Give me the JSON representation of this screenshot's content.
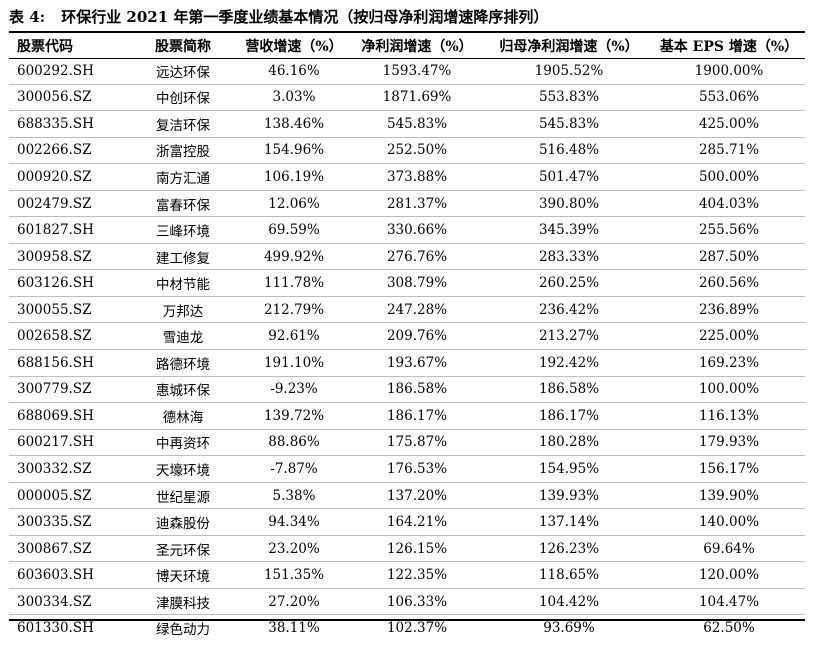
{
  "caption": {
    "label": "表 4:",
    "title": "环保行业 2021 年第一季度业绩基本情况（按归母净利润增速降序排列）"
  },
  "table": {
    "headers": [
      "股票代码",
      "股票简称",
      "营收增速（%）",
      "净利润增速（%）",
      "归母净利润增速（%）",
      "基本 EPS 增速（%）"
    ],
    "rows": [
      [
        "600292.SH",
        "远达环保",
        "46.16%",
        "1593.47%",
        "1905.52%",
        "1900.00%"
      ],
      [
        "300056.SZ",
        "中创环保",
        "3.03%",
        "1871.69%",
        "553.83%",
        "553.06%"
      ],
      [
        "688335.SH",
        "复洁环保",
        "138.46%",
        "545.83%",
        "545.83%",
        "425.00%"
      ],
      [
        "002266.SZ",
        "浙富控股",
        "154.96%",
        "252.50%",
        "516.48%",
        "285.71%"
      ],
      [
        "000920.SZ",
        "南方汇通",
        "106.19%",
        "373.88%",
        "501.47%",
        "500.00%"
      ],
      [
        "002479.SZ",
        "富春环保",
        "12.06%",
        "281.37%",
        "390.80%",
        "404.03%"
      ],
      [
        "601827.SH",
        "三峰环境",
        "69.59%",
        "330.66%",
        "345.39%",
        "255.56%"
      ],
      [
        "300958.SZ",
        "建工修复",
        "499.92%",
        "276.76%",
        "283.33%",
        "287.50%"
      ],
      [
        "603126.SH",
        "中材节能",
        "111.78%",
        "308.79%",
        "260.25%",
        "260.56%"
      ],
      [
        "300055.SZ",
        "万邦达",
        "212.79%",
        "247.28%",
        "236.42%",
        "236.89%"
      ],
      [
        "002658.SZ",
        "雪迪龙",
        "92.61%",
        "209.76%",
        "213.27%",
        "225.00%"
      ],
      [
        "688156.SH",
        "路德环境",
        "191.10%",
        "193.67%",
        "192.42%",
        "169.23%"
      ],
      [
        "300779.SZ",
        "惠城环保",
        "-9.23%",
        "186.58%",
        "186.58%",
        "100.00%"
      ],
      [
        "688069.SH",
        "德林海",
        "139.72%",
        "186.17%",
        "186.17%",
        "116.13%"
      ],
      [
        "600217.SH",
        "中再资环",
        "88.86%",
        "175.87%",
        "180.28%",
        "179.93%"
      ],
      [
        "300332.SZ",
        "天壕环境",
        "-7.87%",
        "176.53%",
        "154.95%",
        "156.17%"
      ],
      [
        "000005.SZ",
        "世纪星源",
        "5.38%",
        "137.20%",
        "139.93%",
        "139.90%"
      ],
      [
        "300335.SZ",
        "迪森股份",
        "94.34%",
        "164.21%",
        "137.14%",
        "140.00%"
      ],
      [
        "300867.SZ",
        "圣元环保",
        "23.20%",
        "126.15%",
        "126.23%",
        "69.64%"
      ],
      [
        "603603.SH",
        "博天环境",
        "151.35%",
        "122.35%",
        "118.65%",
        "120.00%"
      ],
      [
        "300334.SZ",
        "津膜科技",
        "27.20%",
        "106.33%",
        "104.42%",
        "104.47%"
      ],
      [
        "601330.SH",
        "绿色动力",
        "38.11%",
        "102.37%",
        "93.69%",
        "62.50%"
      ]
    ]
  }
}
